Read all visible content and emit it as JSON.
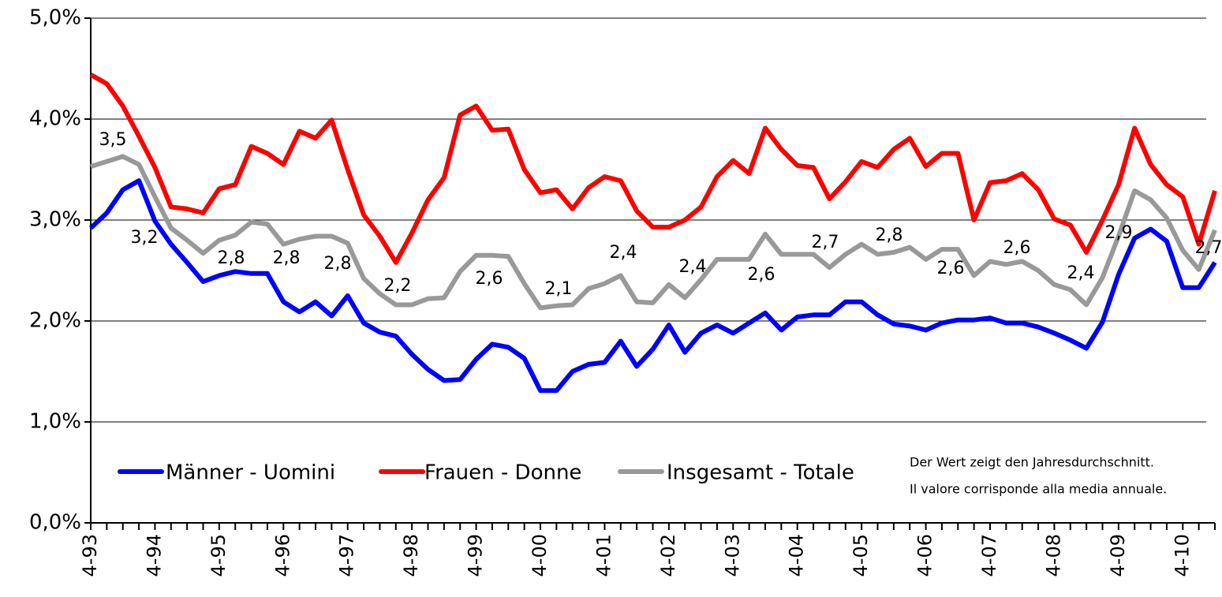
{
  "chart_data": {
    "type": "line",
    "categories": [
      "4-93",
      null,
      null,
      null,
      "4-94",
      null,
      null,
      null,
      "4-95",
      null,
      null,
      null,
      "4-96",
      null,
      null,
      null,
      "4-97",
      null,
      null,
      null,
      "4-98",
      null,
      null,
      null,
      "4-99",
      null,
      null,
      null,
      "4-00",
      null,
      null,
      null,
      "4-01",
      null,
      null,
      null,
      "4-02",
      null,
      null,
      null,
      "4-03",
      null,
      null,
      null,
      "4-04",
      null,
      null,
      null,
      "4-05",
      null,
      null,
      null,
      "4-06",
      null,
      null,
      null,
      "4-07",
      null,
      null,
      null,
      "4-08",
      null,
      null,
      null,
      "4-09",
      null,
      null,
      null,
      "4-10",
      null,
      null
    ],
    "series": [
      {
        "name": "Männer - Uomini",
        "color": "#0000ff",
        "values": [
          2.92,
          3.07,
          3.3,
          3.39,
          2.99,
          2.76,
          2.58,
          2.39,
          2.45,
          2.49,
          2.47,
          2.47,
          2.19,
          2.09,
          2.19,
          2.05,
          2.25,
          1.98,
          1.89,
          1.85,
          1.67,
          1.52,
          1.41,
          1.42,
          1.62,
          1.77,
          1.74,
          1.63,
          1.31,
          1.31,
          1.5,
          1.57,
          1.59,
          1.8,
          1.55,
          1.72,
          1.96,
          1.69,
          1.88,
          1.96,
          1.88,
          1.98,
          2.08,
          1.91,
          2.04,
          2.06,
          2.06,
          2.19,
          2.19,
          2.06,
          1.97,
          1.95,
          1.91,
          1.98,
          2.01,
          2.01,
          2.03,
          1.98,
          1.98,
          1.94,
          1.88,
          1.81,
          1.73,
          1.99,
          2.46,
          2.82,
          2.91,
          2.79,
          2.33,
          2.33,
          2.58
        ]
      },
      {
        "name": "Frauen - Donne",
        "color": "#ff0000",
        "values": [
          4.44,
          4.35,
          4.13,
          3.83,
          3.52,
          3.13,
          3.11,
          3.07,
          3.31,
          3.35,
          3.73,
          3.66,
          3.55,
          3.88,
          3.81,
          3.99,
          3.5,
          3.05,
          2.84,
          2.58,
          2.87,
          3.2,
          3.42,
          4.04,
          4.13,
          3.89,
          3.9,
          3.5,
          3.27,
          3.3,
          3.11,
          3.32,
          3.43,
          3.39,
          3.09,
          2.93,
          2.93,
          3.0,
          3.13,
          3.43,
          3.59,
          3.46,
          3.91,
          3.7,
          3.54,
          3.52,
          3.21,
          3.38,
          3.58,
          3.52,
          3.7,
          3.81,
          3.53,
          3.66,
          3.66,
          3.0,
          3.37,
          3.39,
          3.46,
          3.3,
          3.01,
          2.95,
          2.68,
          3.0,
          3.35,
          3.91,
          3.55,
          3.35,
          3.23,
          2.76,
          3.29
        ]
      },
      {
        "name": "Insgesamt - Totale",
        "color": "#999999",
        "values": [
          3.53,
          3.58,
          3.63,
          3.55,
          3.23,
          2.92,
          2.8,
          2.67,
          2.8,
          2.85,
          2.98,
          2.96,
          2.76,
          2.81,
          2.84,
          2.84,
          2.77,
          2.42,
          2.27,
          2.16,
          2.16,
          2.22,
          2.23,
          2.49,
          2.65,
          2.65,
          2.64,
          2.37,
          2.13,
          2.15,
          2.16,
          2.32,
          2.37,
          2.45,
          2.19,
          2.18,
          2.36,
          2.23,
          2.41,
          2.61,
          2.61,
          2.61,
          2.86,
          2.66,
          2.66,
          2.66,
          2.53,
          2.66,
          2.76,
          2.66,
          2.68,
          2.73,
          2.61,
          2.71,
          2.71,
          2.45,
          2.59,
          2.56,
          2.59,
          2.5,
          2.36,
          2.31,
          2.16,
          2.43,
          2.84,
          3.29,
          3.2,
          3.02,
          2.7,
          2.51,
          2.9
        ]
      }
    ],
    "ylim": [
      0,
      5
    ],
    "yticks": [
      {
        "value": 0,
        "label": "0,0%"
      },
      {
        "value": 1,
        "label": "1,0%"
      },
      {
        "value": 2,
        "label": "2,0%"
      },
      {
        "value": 3,
        "label": "3,0%"
      },
      {
        "value": 4,
        "label": "4,0%"
      },
      {
        "value": 5,
        "label": "5,0%"
      }
    ],
    "grid": true,
    "legend": "lower left",
    "annotations": [
      "3,5",
      "3,2",
      "2,8",
      "2,8",
      "2,8",
      "2,2",
      "2,6",
      "2,1",
      "2,4",
      "2,4",
      "2,6",
      "2,7",
      "2,8",
      "2,6",
      "2,6",
      "2,4",
      "2,9",
      "2,7"
    ],
    "note": [
      "Der Wert zeigt den Jahresdurchschnitt.",
      "Il valore corrisponde alla media annuale."
    ]
  }
}
